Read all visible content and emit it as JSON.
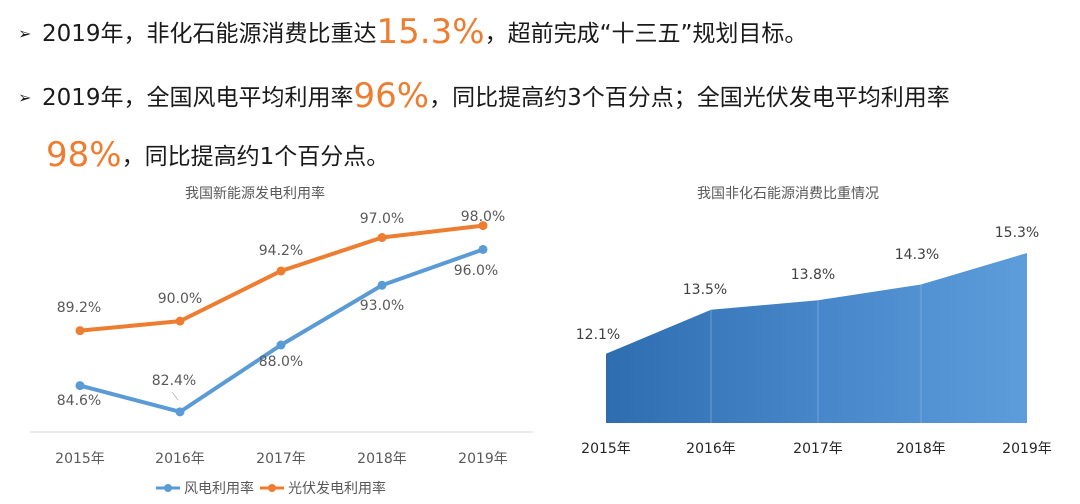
{
  "bullets": {
    "line1": {
      "pre": "2019年，非化石能源消费比重达",
      "hl": "15.3%",
      "post": "，超前完成“十三五”规划目标。"
    },
    "line2": {
      "pre": "2019年，全国风电平均利用率",
      "hl": "96%",
      "post": "，同比提高约3个百分点；全国光伏发电平均利用率"
    },
    "line3": {
      "hl": "98%",
      "post": "，同比提高约1个百分点。"
    }
  },
  "chart_data": [
    {
      "type": "line",
      "title": "我国新能源发电利用率",
      "categories": [
        "2015年",
        "2016年",
        "2017年",
        "2018年",
        "2019年"
      ],
      "series": [
        {
          "name": "风电利用率",
          "values": [
            84.6,
            82.4,
            88.0,
            93.0,
            96.0
          ],
          "labels": [
            "84.6%",
            "82.4%",
            "88.0%",
            "93.0%",
            "96.0%"
          ],
          "color": "#5B9BD5"
        },
        {
          "name": "光伏发电利用率",
          "values": [
            89.2,
            90.0,
            94.2,
            97.0,
            98.0
          ],
          "labels": [
            "89.2%",
            "90.0%",
            "94.2%",
            "97.0%",
            "98.0%"
          ],
          "color": "#ED7D31"
        }
      ],
      "legend": "bottom",
      "grid": false
    },
    {
      "type": "area",
      "title": "我国非化石能源消费比重情况",
      "categories": [
        "2015年",
        "2016年",
        "2017年",
        "2018年",
        "2019年"
      ],
      "values": [
        12.1,
        13.5,
        13.8,
        14.3,
        15.3
      ],
      "labels": [
        "12.1%",
        "13.5%",
        "13.8%",
        "14.3%",
        "15.3%"
      ],
      "color": "#4A8DD0",
      "grid": false
    }
  ]
}
